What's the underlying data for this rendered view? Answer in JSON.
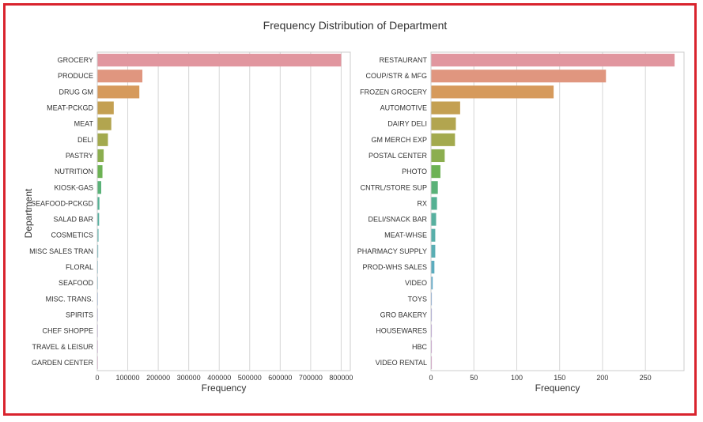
{
  "chart_data": {
    "type": "bar",
    "orientation": "horizontal",
    "title": "Frequency Distribution of Department",
    "ylabel": "Department",
    "panels": [
      {
        "xlabel": "Frequency",
        "xlim": [
          0,
          830000
        ],
        "xticks": [
          0,
          100000,
          200000,
          300000,
          400000,
          500000,
          600000,
          700000,
          800000
        ],
        "categories": [
          "GROCERY",
          "PRODUCE",
          "DRUG GM",
          "MEAT-PCKGD",
          "MEAT",
          "DELI",
          "PASTRY",
          "NUTRITION",
          "KIOSK-GAS",
          "SEAFOOD-PCKGD",
          "SALAD BAR",
          "COSMETICS",
          "MISC SALES TRAN",
          "FLORAL",
          "SEAFOOD",
          "MISC. TRANS.",
          "SPIRITS",
          "CHEF SHOPPE",
          "TRAVEL & LEISUR",
          "GARDEN CENTER"
        ],
        "values": [
          800000,
          148000,
          138000,
          54000,
          46000,
          35000,
          21000,
          17000,
          13000,
          7000,
          6000,
          4000,
          3000,
          1500,
          1200,
          900,
          600,
          400,
          300,
          200
        ],
        "colors": [
          "#e1969f",
          "#e0967f",
          "#d69a5c",
          "#c4a052",
          "#b2a54f",
          "#a3aa4e",
          "#8cae4f",
          "#6db254",
          "#5bb278",
          "#55b193",
          "#57b09f",
          "#58afaa",
          "#5aaeb4",
          "#5cacbe",
          "#5fa9c9",
          "#76a0d6",
          "#9e9ad8",
          "#b896d6",
          "#c991cf",
          "#d68fc3"
        ]
      },
      {
        "xlabel": "Frequency",
        "xlim": [
          0,
          295
        ],
        "xticks": [
          0,
          50,
          100,
          150,
          200,
          250
        ],
        "categories": [
          "RESTAURANT",
          "COUP/STR & MFG",
          "FROZEN GROCERY",
          "AUTOMOTIVE",
          "DAIRY DELI",
          "GM MERCH EXP",
          "POSTAL CENTER",
          "PHOTO",
          "CNTRL/STORE SUP",
          "RX",
          "DELI/SNACK BAR",
          "MEAT-WHSE",
          "PHARMACY SUPPLY",
          "PROD-WHS SALES",
          "VIDEO",
          "TOYS",
          "GRO BAKERY",
          "HOUSEWARES",
          "HBC",
          "VIDEO RENTAL"
        ],
        "values": [
          284,
          204,
          143,
          34,
          29,
          28,
          16,
          11,
          8,
          7,
          6,
          5,
          5,
          4,
          2,
          1,
          1,
          1,
          1,
          1
        ],
        "colors": [
          "#e1969f",
          "#e0967f",
          "#d69a5c",
          "#c4a052",
          "#b2a54f",
          "#a3aa4e",
          "#8cae4f",
          "#6db254",
          "#5bb278",
          "#55b193",
          "#57b09f",
          "#58afaa",
          "#5aaeb4",
          "#5cacbe",
          "#5fa9c9",
          "#76a0d6",
          "#9e9ad8",
          "#b896d6",
          "#c991cf",
          "#d68fc3"
        ]
      }
    ]
  },
  "colors": {
    "frame_border": "#d9232d",
    "grid": "#d6d6d6",
    "text": "#333333"
  }
}
